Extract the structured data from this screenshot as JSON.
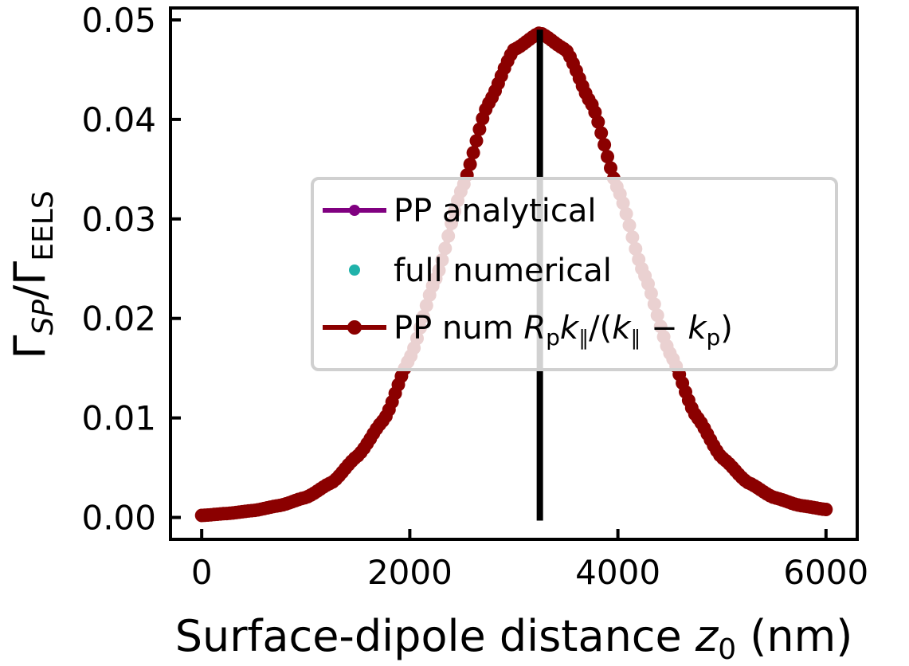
{
  "chart_data": {
    "type": "line",
    "xlabel": "Surface-dipole distance z₀ (nm)",
    "xlabel_parts": {
      "text": "Surface-dipole distance ",
      "var": "z",
      "sub": "0",
      "unit": " (nm)"
    },
    "ylabel": "ΓSP/ΓEELS",
    "ylabel_parts": {
      "gamma1": "Γ",
      "sub1": "SP",
      "sep": "/",
      "gamma2": "Γ",
      "sub2": "EELS"
    },
    "xlim": [
      -300,
      6300
    ],
    "ylim": [
      -0.0022,
      0.0512
    ],
    "x_ticks": [
      0,
      2000,
      4000,
      6000
    ],
    "x_tick_labels": [
      "0",
      "2000",
      "4000",
      "6000"
    ],
    "y_ticks": [
      0.0,
      0.01,
      0.02,
      0.03,
      0.04,
      0.05
    ],
    "y_tick_labels": [
      "0.00",
      "0.01",
      "0.02",
      "0.03",
      "0.04",
      "0.05"
    ],
    "grid": false,
    "legend_position": "center-right",
    "vertical_line": {
      "x": 3250,
      "y_range": [
        0.0,
        0.0487
      ],
      "color": "#000000"
    },
    "series": [
      {
        "name": "PP analytical",
        "color": "#800080",
        "style": "line-marker",
        "visible_in_plot": false
      },
      {
        "name": "full numerical",
        "color": "#20b2aa",
        "style": "marker",
        "visible_in_plot": false
      },
      {
        "name": "PP num Rₚk∥/(k∥ − kₚ)",
        "color": "#8b0000",
        "style": "line-marker",
        "visible_in_plot": true,
        "peak_x": 3250,
        "x": [
          0,
          250,
          500,
          750,
          1000,
          1250,
          1500,
          1750,
          2000,
          2250,
          2500,
          2750,
          3000,
          3250,
          3500,
          3750,
          4000,
          4250,
          4500,
          4750,
          5000,
          5250,
          5500,
          5750,
          6000
        ],
        "y": [
          0.0002,
          0.0004,
          0.0007,
          0.0012,
          0.002,
          0.0035,
          0.0062,
          0.0098,
          0.016,
          0.024,
          0.033,
          0.0415,
          0.047,
          0.0487,
          0.047,
          0.0415,
          0.033,
          0.0245,
          0.0165,
          0.0102,
          0.006,
          0.0035,
          0.002,
          0.0012,
          0.0008
        ]
      }
    ],
    "legend_labels": {
      "analytical": "PP analytical",
      "numerical": "full numerical",
      "ppnum_prefix": "PP num ",
      "ppnum_R": "R",
      "ppnum_p1": "p",
      "ppnum_k1": "k",
      "ppnum_par1": "∥",
      "ppnum_mid": "/(",
      "ppnum_k2": "k",
      "ppnum_par2": "∥",
      "ppnum_minus": " − ",
      "ppnum_k3": "k",
      "ppnum_p2": "p",
      "ppnum_end": ")"
    }
  }
}
